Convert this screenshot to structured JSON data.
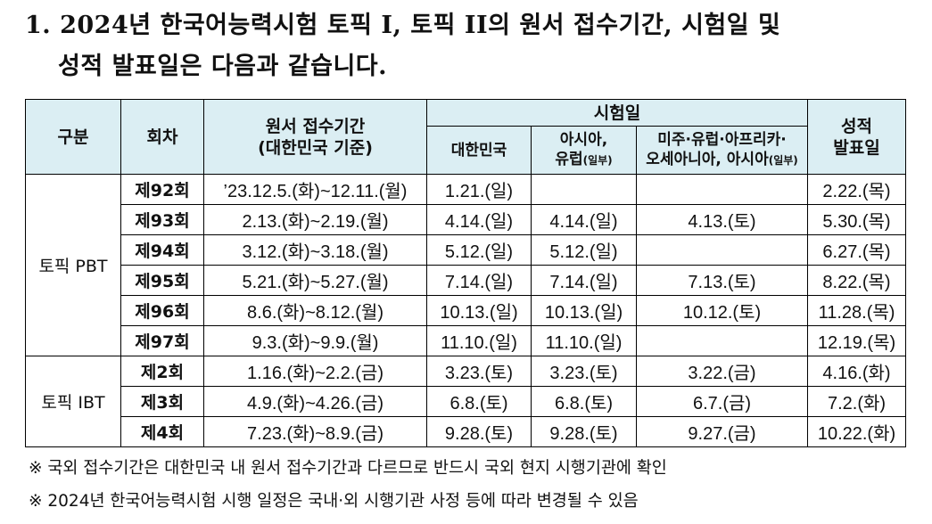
{
  "heading": {
    "line1": "1. 2024년 한국어능력시험 토픽 I, 토픽 II의 원서 접수기간, 시험일 및",
    "line2": "성적 발표일은 다음과 같습니다."
  },
  "table": {
    "headers": {
      "category": "구분",
      "round": "회차",
      "application_line1": "원서 접수기간",
      "application_line2": "(대한민국 기준)",
      "exam_day": "시험일",
      "korea": "대한민국",
      "asia_europe_line1": "아시아,",
      "asia_europe_line2_main": "유럽",
      "asia_europe_line2_small": "(일부)",
      "americas_line1": "미주·유럽·아프리카·",
      "americas_line2_main": "오세아니아, 아시아",
      "americas_line2_small": "(일부)",
      "result_line1": "성적",
      "result_line2": "발표일"
    },
    "groups": [
      {
        "name": "토픽 PBT",
        "rows": [
          {
            "round": "제92회",
            "application": "’23.12.5.(화)~12.11.(월)",
            "korea": "1.21.(일)",
            "asia": "",
            "americas": "",
            "result": "2.22.(목)"
          },
          {
            "round": "제93회",
            "application": "2.13.(화)~2.19.(월)",
            "korea": "4.14.(일)",
            "asia": "4.14.(일)",
            "americas": "4.13.(토)",
            "result": "5.30.(목)"
          },
          {
            "round": "제94회",
            "application": "3.12.(화)~3.18.(월)",
            "korea": "5.12.(일)",
            "asia": "5.12.(일)",
            "americas": "",
            "result": "6.27.(목)"
          },
          {
            "round": "제95회",
            "application": "5.21.(화)~5.27.(월)",
            "korea": "7.14.(일)",
            "asia": "7.14.(일)",
            "americas": "7.13.(토)",
            "result": "8.22.(목)"
          },
          {
            "round": "제96회",
            "application": "8.6.(화)~8.12.(월)",
            "korea": "10.13.(일)",
            "asia": "10.13.(일)",
            "americas": "10.12.(토)",
            "result": "11.28.(목)"
          },
          {
            "round": "제97회",
            "application": "9.3.(화)~9.9.(월)",
            "korea": "11.10.(일)",
            "asia": "11.10.(일)",
            "americas": "",
            "result": "12.19.(목)"
          }
        ]
      },
      {
        "name": "토픽 IBT",
        "rows": [
          {
            "round": "제2회",
            "application": "1.16.(화)~2.2.(금)",
            "korea": "3.23.(토)",
            "asia": "3.23.(토)",
            "americas": "3.22.(금)",
            "result": "4.16.(화)"
          },
          {
            "round": "제3회",
            "application": "4.9.(화)~4.26.(금)",
            "korea": "6.8.(토)",
            "asia": "6.8.(토)",
            "americas": "6.7.(금)",
            "result": "7.2.(화)"
          },
          {
            "round": "제4회",
            "application": "7.23.(화)~8.9.(금)",
            "korea": "9.28.(토)",
            "asia": "9.28.(토)",
            "americas": "9.27.(금)",
            "result": "10.22.(화)"
          }
        ]
      }
    ]
  },
  "notes": [
    "※ 국외 접수기간은 대한민국 내 원서 접수기간과 다르므로 반드시 국외 현지 시행기관에 확인",
    "※ 2024년 한국어능력시험 시행 일정은 국내·외 시행기관 사정 등에 따라 변경될 수 있음"
  ],
  "colors": {
    "header_background": "#dbeef3",
    "border": "#000000"
  }
}
